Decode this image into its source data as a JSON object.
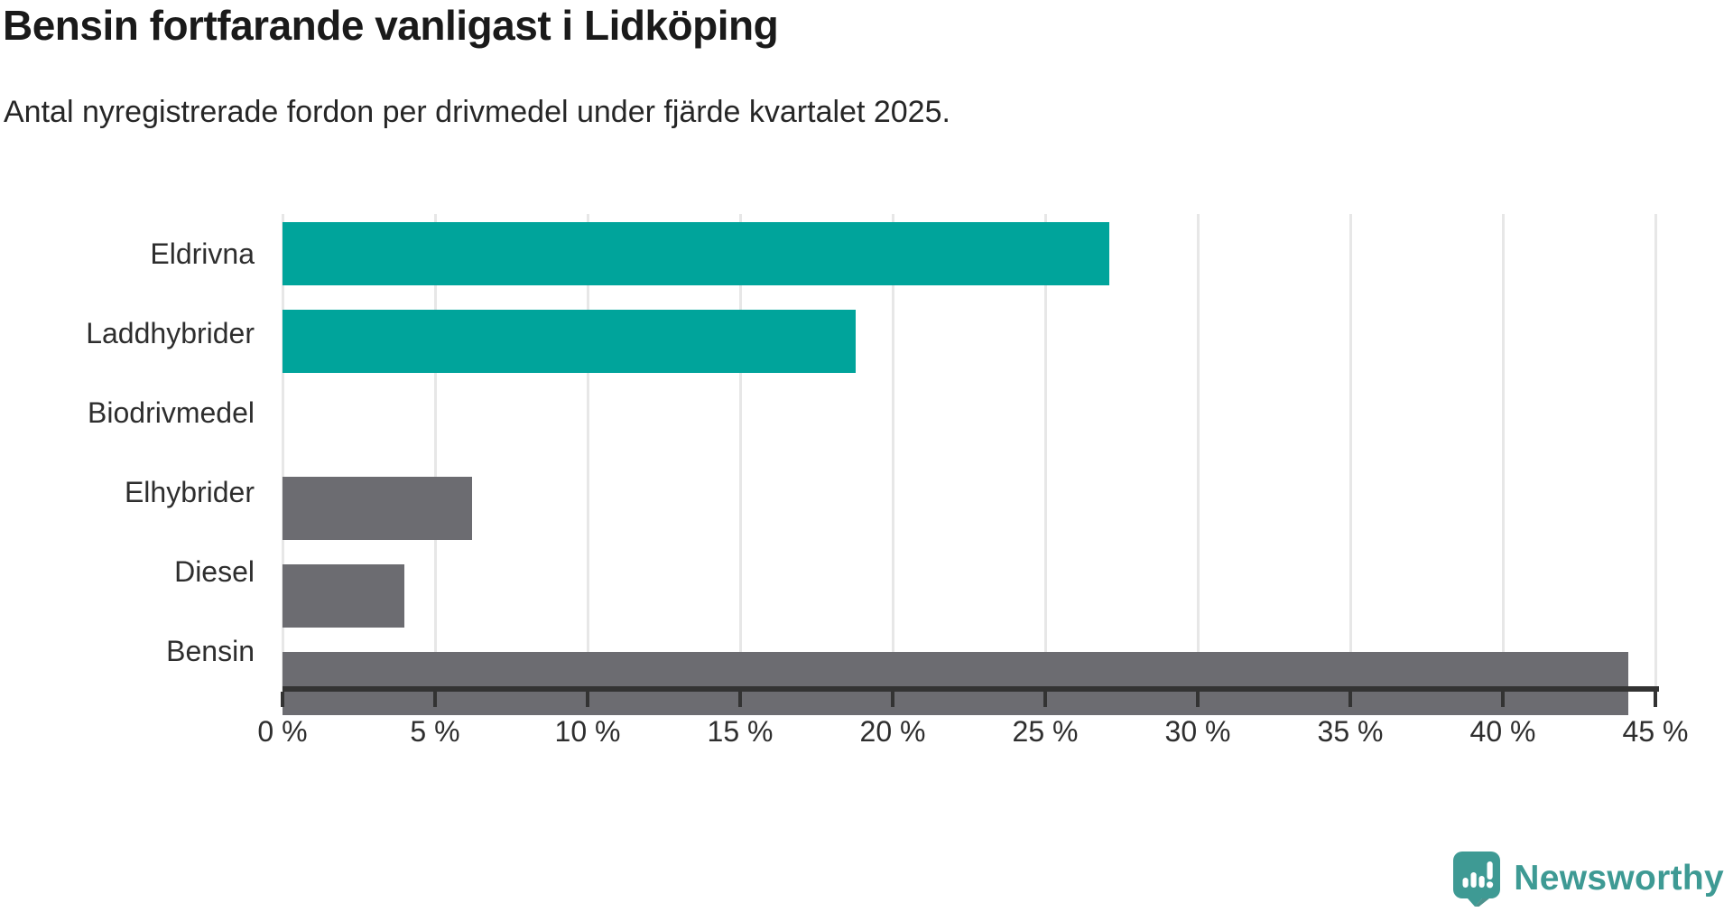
{
  "title": "Bensin fortfarande vanligast i Lidköping",
  "subtitle": "Antal nyregistrerade fordon per drivmedel under fjärde kvartalet 2025.",
  "chart_data": {
    "type": "bar",
    "orientation": "horizontal",
    "categories": [
      "Eldrivna",
      "Laddhybrider",
      "Biodrivmedel",
      "Elhybrider",
      "Diesel",
      "Bensin"
    ],
    "values": [
      27.1,
      18.8,
      0,
      6.2,
      4,
      44.1
    ],
    "unit": "%",
    "xlim": [
      0,
      45
    ],
    "ticks": [
      0,
      5,
      10,
      15,
      20,
      25,
      30,
      35,
      40,
      45
    ],
    "tick_labels": [
      "0 %",
      "5 %",
      "10 %",
      "15 %",
      "20 %",
      "25 %",
      "30 %",
      "35 %",
      "40 %",
      "45 %"
    ],
    "grid": true,
    "legend": false,
    "bar_colors": [
      "#00A49B",
      "#00A49B",
      "#00A49B",
      "#6C6C71",
      "#6C6C71",
      "#6C6C71"
    ]
  },
  "colors": {
    "teal_bar": "#00A49B",
    "gray_bar": "#6C6C71",
    "title_text": "#1A1A1A",
    "body_text": "#2E2E2E",
    "gridline": "#E7E7E7",
    "axis_line": "#333333",
    "brand_teal": "#3E9A94",
    "brand_teal_dark": "#2E7F79"
  },
  "branding": {
    "logo_text": "Newsworthy",
    "logo_icon": "newsworthy-speech-bubble-bar-chart-icon"
  }
}
